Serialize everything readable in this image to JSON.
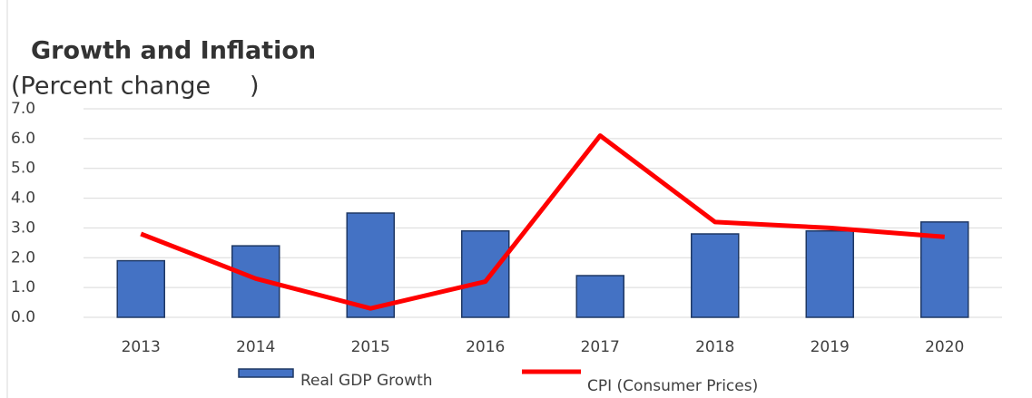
{
  "chart_data": {
    "type": "bar",
    "title": "Growth and Inflation",
    "subtitle": "(Percent change     )",
    "categories": [
      "2013",
      "2014",
      "2015",
      "2016",
      "2017",
      "2018",
      "2019",
      "2020"
    ],
    "series": [
      {
        "name": "Real GDP Growth",
        "type": "bar",
        "color": "#4472c4",
        "values": [
          1.9,
          2.4,
          3.5,
          2.9,
          1.4,
          2.8,
          2.9,
          3.2
        ]
      },
      {
        "name": "CPI (Consumer Prices)",
        "type": "line",
        "color": "#ff0000",
        "values": [
          2.8,
          1.3,
          0.3,
          1.2,
          6.1,
          3.2,
          3.0,
          2.7
        ]
      }
    ],
    "ylim": [
      0,
      7
    ],
    "yticks": [
      {
        "value": 0,
        "label": "0.0"
      },
      {
        "value": 1,
        "label": "1.0"
      },
      {
        "value": 2,
        "label": "2.0"
      },
      {
        "value": 3,
        "label": "3.0"
      },
      {
        "value": 4,
        "label": "4.0"
      },
      {
        "value": 5,
        "label": "5.0"
      },
      {
        "value": 6,
        "label": "6.0"
      },
      {
        "value": 7,
        "label": "7.0"
      }
    ],
    "grid": true,
    "legend": "bottom"
  }
}
